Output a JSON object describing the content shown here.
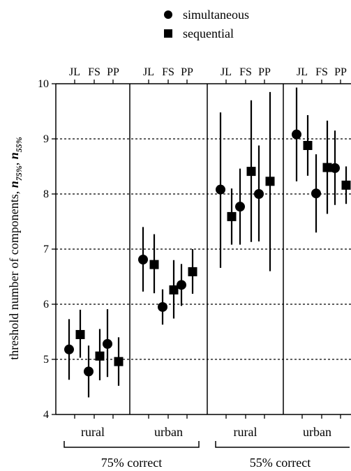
{
  "chart_data": {
    "type": "scatter",
    "title": "",
    "ylabel": "threshold number of components, n75%, n55%",
    "ylabel_parts": {
      "prefix": "threshold number of components, ",
      "n1": "n",
      "sub1": "75%",
      "sep": ", ",
      "n2": "n",
      "sub2": "55%"
    },
    "ylim": [
      4,
      10
    ],
    "yticks": [
      "4",
      "5",
      "6",
      "7",
      "8",
      "9",
      "10"
    ],
    "grid": "dashed horizontal",
    "legend_position": "top-center",
    "legend": [
      {
        "label": "simultaneous",
        "marker": "circle"
      },
      {
        "label": "sequential",
        "marker": "square"
      }
    ],
    "observers": [
      "JL",
      "FS",
      "PP"
    ],
    "panels": [
      {
        "label": "rural",
        "group": "75% correct",
        "points": [
          {
            "observer": "JL",
            "simultaneous": {
              "y": 5.18,
              "lo": 4.63,
              "hi": 5.73
            },
            "sequential": {
              "y": 5.45,
              "lo": 5.03,
              "hi": 5.9
            }
          },
          {
            "observer": "FS",
            "simultaneous": {
              "y": 4.78,
              "lo": 4.31,
              "hi": 5.25
            },
            "sequential": {
              "y": 5.06,
              "lo": 4.62,
              "hi": 5.55
            }
          },
          {
            "observer": "PP",
            "simultaneous": {
              "y": 5.28,
              "lo": 4.68,
              "hi": 5.91
            },
            "sequential": {
              "y": 4.96,
              "lo": 4.52,
              "hi": 5.4
            }
          }
        ]
      },
      {
        "label": "urban",
        "group": "75% correct",
        "points": [
          {
            "observer": "JL",
            "simultaneous": {
              "y": 6.81,
              "lo": 6.23,
              "hi": 7.4
            },
            "sequential": {
              "y": 6.72,
              "lo": 6.2,
              "hi": 7.27
            }
          },
          {
            "observer": "FS",
            "simultaneous": {
              "y": 5.95,
              "lo": 5.63,
              "hi": 6.27
            },
            "sequential": {
              "y": 6.26,
              "lo": 5.74,
              "hi": 6.8
            }
          },
          {
            "observer": "PP",
            "simultaneous": {
              "y": 6.35,
              "lo": 5.97,
              "hi": 6.73
            },
            "sequential": {
              "y": 6.59,
              "lo": 6.19,
              "hi": 7.0
            }
          }
        ]
      },
      {
        "label": "rural",
        "group": "55% correct",
        "points": [
          {
            "observer": "JL",
            "simultaneous": {
              "y": 8.08,
              "lo": 6.66,
              "hi": 9.48
            },
            "sequential": {
              "y": 7.59,
              "lo": 7.08,
              "hi": 8.1
            }
          },
          {
            "observer": "FS",
            "simultaneous": {
              "y": 7.77,
              "lo": 7.08,
              "hi": 8.46
            },
            "sequential": {
              "y": 8.41,
              "lo": 7.13,
              "hi": 9.7
            }
          },
          {
            "observer": "PP",
            "simultaneous": {
              "y": 8.0,
              "lo": 7.14,
              "hi": 8.88
            },
            "sequential": {
              "y": 8.23,
              "lo": 6.6,
              "hi": 9.85
            }
          }
        ]
      },
      {
        "label": "urban",
        "group": "55% correct",
        "points": [
          {
            "observer": "JL",
            "simultaneous": {
              "y": 9.08,
              "lo": 8.23,
              "hi": 9.93
            },
            "sequential": {
              "y": 8.88,
              "lo": 8.33,
              "hi": 9.43
            }
          },
          {
            "observer": "FS",
            "simultaneous": {
              "y": 8.01,
              "lo": 7.3,
              "hi": 8.72
            },
            "sequential": {
              "y": 8.48,
              "lo": 7.64,
              "hi": 9.33
            }
          },
          {
            "observer": "PP",
            "simultaneous": {
              "y": 8.47,
              "lo": 7.8,
              "hi": 9.15
            },
            "sequential": {
              "y": 8.16,
              "lo": 7.82,
              "hi": 8.5
            }
          }
        ]
      }
    ],
    "groups": [
      "75% correct",
      "55% correct"
    ]
  }
}
